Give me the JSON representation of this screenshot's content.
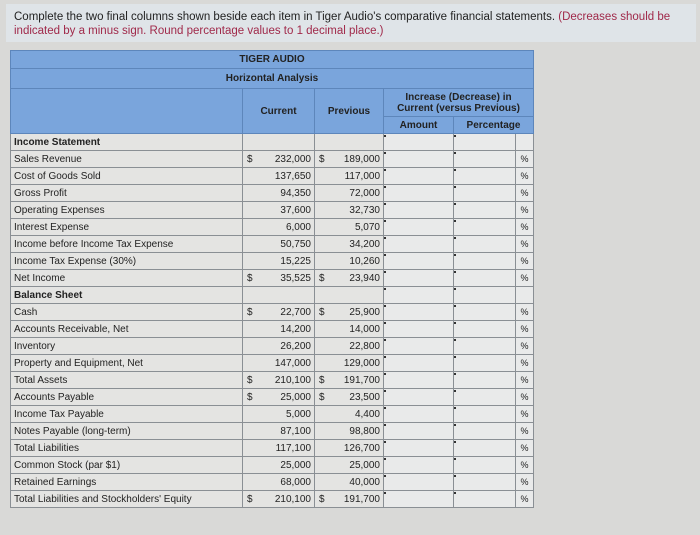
{
  "instructions": {
    "main": "Complete the two final columns shown beside each item in Tiger Audio's comparative financial statements.",
    "note": "(Decreases should be indicated by a minus sign. Round percentage values to 1 decimal place.)"
  },
  "table": {
    "title": "TIGER AUDIO",
    "subtitle": "Horizontal Analysis",
    "col_current": "Current",
    "col_previous": "Previous",
    "col_change": "Increase (Decrease) in Current (versus Previous)",
    "col_amount": "Amount",
    "col_percentage": "Percentage",
    "percent_symbol": "%",
    "rows": [
      {
        "label": "Income Statement",
        "section": true
      },
      {
        "label": "Sales Revenue",
        "current": "232,000",
        "previous": "189,000",
        "dollar": true
      },
      {
        "label": "Cost of Goods Sold",
        "current": "137,650",
        "previous": "117,000"
      },
      {
        "label": "Gross Profit",
        "current": "94,350",
        "previous": "72,000"
      },
      {
        "label": "Operating Expenses",
        "current": "37,600",
        "previous": "32,730"
      },
      {
        "label": "Interest Expense",
        "current": "6,000",
        "previous": "5,070"
      },
      {
        "label": "Income before Income Tax Expense",
        "current": "50,750",
        "previous": "34,200"
      },
      {
        "label": "Income Tax Expense (30%)",
        "current": "15,225",
        "previous": "10,260"
      },
      {
        "label": "Net Income",
        "current": "35,525",
        "previous": "23,940",
        "dollar": true
      },
      {
        "label": "Balance Sheet",
        "section": true
      },
      {
        "label": "Cash",
        "current": "22,700",
        "previous": "25,900",
        "dollar": true
      },
      {
        "label": "Accounts Receivable, Net",
        "current": "14,200",
        "previous": "14,000"
      },
      {
        "label": "Inventory",
        "current": "26,200",
        "previous": "22,800"
      },
      {
        "label": "Property and Equipment, Net",
        "current": "147,000",
        "previous": "129,000"
      },
      {
        "label": "Total Assets",
        "current": "210,100",
        "previous": "191,700",
        "dollar": true
      },
      {
        "label": "Accounts Payable",
        "current": "25,000",
        "previous": "23,500",
        "dollar": true
      },
      {
        "label": "Income Tax Payable",
        "current": "5,000",
        "previous": "4,400"
      },
      {
        "label": "Notes Payable (long-term)",
        "current": "87,100",
        "previous": "98,800"
      },
      {
        "label": "Total Liabilities",
        "current": "117,100",
        "previous": "126,700"
      },
      {
        "label": "Common Stock (par $1)",
        "current": "25,000",
        "previous": "25,000"
      },
      {
        "label": "Retained Earnings",
        "current": "68,000",
        "previous": "40,000"
      },
      {
        "label": "Total Liabilities and Stockholders' Equity",
        "current": "210,100",
        "previous": "191,700",
        "dollar": true
      }
    ],
    "dollar_sign": "$"
  }
}
